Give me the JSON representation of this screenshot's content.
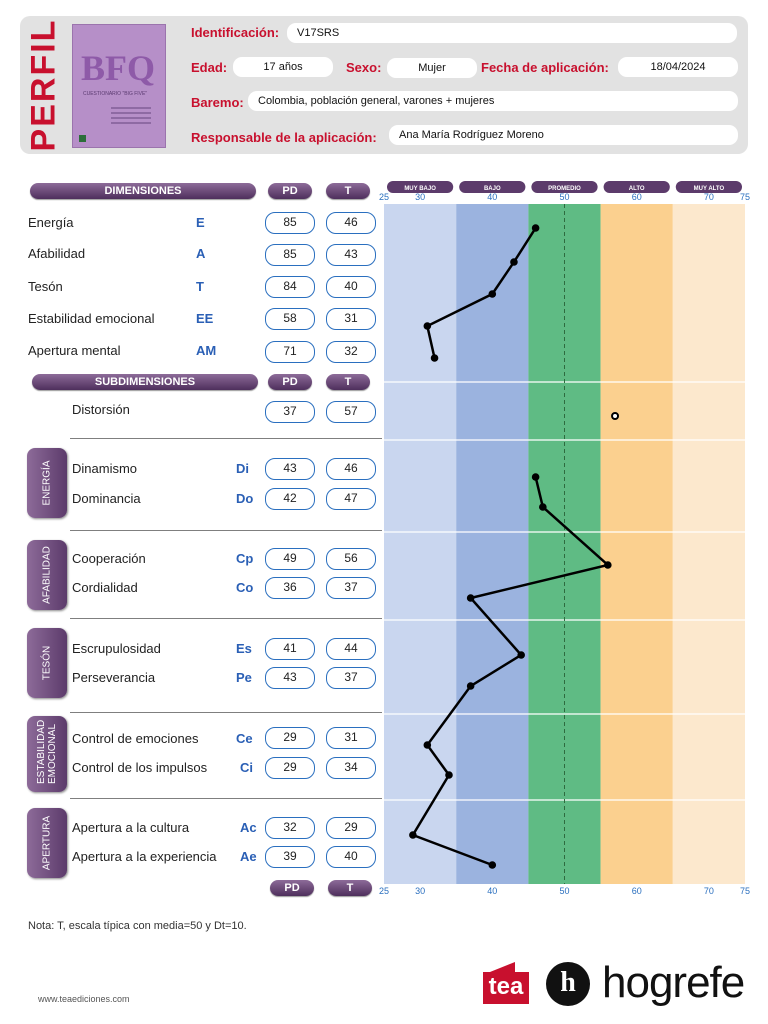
{
  "header": {
    "perfil": "PERFIL",
    "cover": {
      "title": "BFQ",
      "subtitle": "CUESTIONARIO \"BIG FIVE\""
    },
    "fields": {
      "identificacion": {
        "label": "Identificación:",
        "value": "V17SRS"
      },
      "edad": {
        "label": "Edad:",
        "value": "17  años"
      },
      "sexo": {
        "label": "Sexo:",
        "value": "Mujer"
      },
      "fecha": {
        "label": "Fecha de aplicación:",
        "value": "18/04/2024"
      },
      "baremo": {
        "label": "Baremo:",
        "value": "Colombia, población general, varones + mujeres"
      },
      "responsable": {
        "label": "Responsable de la aplicación:",
        "value": "Ana María Rodríguez Moreno"
      }
    }
  },
  "columns": {
    "dimensiones": "DIMENSIONES",
    "subdimensiones": "SUBDIMENSIONES",
    "pd": "PD",
    "t": "T"
  },
  "dimensions": [
    {
      "label": "Energía",
      "abbr": "E",
      "pd": "85",
      "t": 46
    },
    {
      "label": "Afabilidad",
      "abbr": "A",
      "pd": "85",
      "t": 43
    },
    {
      "label": "Tesón",
      "abbr": "T",
      "pd": "84",
      "t": 40
    },
    {
      "label": "Estabilidad emocional",
      "abbr": "EE",
      "pd": "58",
      "t": 31
    },
    {
      "label": "Apertura mental",
      "abbr": "AM",
      "pd": "71",
      "t": 32
    }
  ],
  "distortion": {
    "label": "Distorsión",
    "pd": "37",
    "t": 57
  },
  "groups": [
    {
      "tab": "ENERGÍA",
      "items": [
        {
          "label": "Dinamismo",
          "abbr": "Di",
          "pd": "43",
          "t": 46
        },
        {
          "label": "Dominancia",
          "abbr": "Do",
          "pd": "42",
          "t": 47
        }
      ]
    },
    {
      "tab": "AFABILIDAD",
      "items": [
        {
          "label": "Cooperación",
          "abbr": "Cp",
          "pd": "49",
          "t": 56
        },
        {
          "label": "Cordialidad",
          "abbr": "Co",
          "pd": "36",
          "t": 37
        }
      ]
    },
    {
      "tab": "TESÓN",
      "items": [
        {
          "label": "Escrupulosidad",
          "abbr": "Es",
          "pd": "41",
          "t": 44
        },
        {
          "label": "Perseverancia",
          "abbr": "Pe",
          "pd": "43",
          "t": 37
        }
      ]
    },
    {
      "tab": "ESTABILIDAD EMOCIONAL",
      "items": [
        {
          "label": "Control de emociones",
          "abbr": "Ce",
          "pd": "29",
          "t": 31
        },
        {
          "label": "Control de los impulsos",
          "abbr": "Ci",
          "pd": "29",
          "t": 34
        }
      ]
    },
    {
      "tab": "APERTURA",
      "items": [
        {
          "label": "Apertura a la cultura",
          "abbr": "Ac",
          "pd": "32",
          "t": 29
        },
        {
          "label": "Apertura a la experiencia",
          "abbr": "Ae",
          "pd": "39",
          "t": 40
        }
      ]
    }
  ],
  "chart_data": {
    "type": "line",
    "bands": [
      {
        "name": "MUY BAJO",
        "from": 25,
        "to": 35,
        "color": "#c9d6ef"
      },
      {
        "name": "BAJO",
        "from": 35,
        "to": 45,
        "color": "#9bb3df"
      },
      {
        "name": "PROMEDIO",
        "from": 45,
        "to": 55,
        "color": "#5fbb84"
      },
      {
        "name": "ALTO",
        "from": 55,
        "to": 65,
        "color": "#fbd08f"
      },
      {
        "name": "MUY ALTO",
        "from": 65,
        "to": 75,
        "color": "#fce8cd"
      }
    ],
    "xlim": [
      25,
      75
    ],
    "ticks": [
      "25",
      "30",
      "40",
      "50",
      "60",
      "70",
      "75"
    ],
    "tick_values": [
      25,
      30,
      40,
      50,
      60,
      70,
      75
    ],
    "mean_line": 50,
    "series": [
      {
        "values": [
          46,
          43,
          40,
          31,
          32
        ]
      },
      {
        "values": [
          57
        ]
      },
      {
        "values": [
          46,
          47,
          56,
          37,
          44,
          37,
          31,
          34,
          29,
          40
        ]
      }
    ]
  },
  "footer": {
    "note": "Nota: T, escala típica con media=50 y Dt=10.",
    "url": "www.teaediciones.com",
    "logo_tea": "tea",
    "logo_hogrefe": "hogrefe",
    "logo_h": "h"
  },
  "colors": {
    "accent": "#c8102e",
    "purple": "#5c3b6b",
    "blue": "#2a6fbf"
  }
}
